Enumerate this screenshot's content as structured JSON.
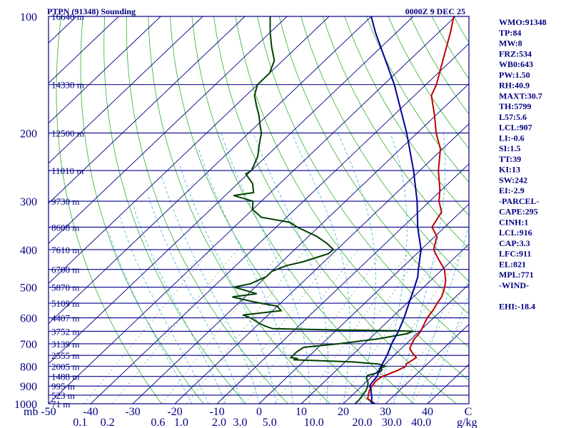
{
  "chart_data": {
    "type": "line",
    "title": "PTPN (91348) Sounding",
    "datetime": "0000Z  9 DEC 25",
    "xunit_label": "mb",
    "mixing_ratio_unit": "g/kg",
    "xlim": [
      -50,
      50
    ],
    "ylim": [
      1000,
      100
    ],
    "y_scale": "log",
    "pressure_ticks": [
      100,
      200,
      300,
      400,
      500,
      600,
      700,
      800,
      900,
      1000
    ],
    "temp_ticks": [
      -50,
      -40,
      -30,
      -20,
      -10,
      0,
      10,
      20,
      30,
      40
    ],
    "temp_tick_labels": [
      "-50",
      "-40",
      "-30",
      "-20",
      "-10",
      "0",
      "10",
      "20",
      "30",
      "40"
    ],
    "mixing_ratio_labels": [
      {
        "label": "0.1",
        "t": -42.5
      },
      {
        "label": "0.2",
        "t": -36
      },
      {
        "label": "0.6",
        "t": -24
      },
      {
        "label": "1.0",
        "t": -18.5
      },
      {
        "label": "2.0",
        "t": -9.5
      },
      {
        "label": "3.0",
        "t": -4.5
      },
      {
        "label": "5.0",
        "t": 2.5
      },
      {
        "label": "10.0",
        "t": 13
      },
      {
        "label": "20.0",
        "t": 24.5
      },
      {
        "label": "30.0",
        "t": 31.5
      },
      {
        "label": "40.0",
        "t": 38.5
      }
    ],
    "height_levels": [
      {
        "p": 100,
        "label": "16640 m"
      },
      {
        "p": 150,
        "label": "14330 m"
      },
      {
        "p": 200,
        "label": "12500 m"
      },
      {
        "p": 250,
        "label": "11010 m"
      },
      {
        "p": 300,
        "label": "9730 m"
      },
      {
        "p": 350,
        "label": "8608 m"
      },
      {
        "p": 400,
        "label": "7610 m"
      },
      {
        "p": 450,
        "label": "6700 m"
      },
      {
        "p": 500,
        "label": "5870 m"
      },
      {
        "p": 550,
        "label": "5109 m"
      },
      {
        "p": 600,
        "label": "4407 m"
      },
      {
        "p": 650,
        "label": "3752 m"
      },
      {
        "p": 700,
        "label": "3139 m"
      },
      {
        "p": 750,
        "label": "2555 m"
      },
      {
        "p": 800,
        "label": "2005 m"
      },
      {
        "p": 850,
        "label": "1488 m"
      },
      {
        "p": 900,
        "label": "995 m"
      },
      {
        "p": 950,
        "label": "523 m"
      },
      {
        "p": 1000,
        "label": "71 m"
      }
    ],
    "series": [
      {
        "name": "Temperature",
        "color": "#c00000",
        "points": [
          [
            1000,
            27.5
          ],
          [
            990,
            26.5
          ],
          [
            970,
            24.5
          ],
          [
            950,
            23.8
          ],
          [
            925,
            22.9
          ],
          [
            900,
            22.4
          ],
          [
            870,
            22.0
          ],
          [
            850,
            22.5
          ],
          [
            820,
            24.6
          ],
          [
            800,
            25.5
          ],
          [
            790,
            25.0
          ],
          [
            760,
            25.8
          ],
          [
            740,
            23.8
          ],
          [
            720,
            22.0
          ],
          [
            700,
            21.3
          ],
          [
            680,
            20.7
          ],
          [
            660,
            20.5
          ],
          [
            650,
            20.3
          ],
          [
            630,
            19.6
          ],
          [
            600,
            18.5
          ],
          [
            570,
            17.9
          ],
          [
            550,
            17.2
          ],
          [
            530,
            16.7
          ],
          [
            500,
            15.0
          ],
          [
            480,
            13.5
          ],
          [
            450,
            10.5
          ],
          [
            420,
            6.0
          ],
          [
            400,
            3.0
          ],
          [
            370,
            0.5
          ],
          [
            350,
            -3.0
          ],
          [
            320,
            -4.5
          ],
          [
            300,
            -7.8
          ],
          [
            280,
            -10.5
          ],
          [
            250,
            -15.6
          ],
          [
            220,
            -20.5
          ],
          [
            200,
            -25.5
          ],
          [
            180,
            -30.3
          ],
          [
            160,
            -36.0
          ],
          [
            150,
            -37.5
          ],
          [
            130,
            -42.0
          ],
          [
            110,
            -47.2
          ],
          [
            100,
            -50.4
          ]
        ]
      },
      {
        "name": "Dew Point",
        "color": "#004000",
        "points": [
          [
            1000,
            22.8
          ],
          [
            980,
            22.8
          ],
          [
            960,
            22.6
          ],
          [
            950,
            22.4
          ],
          [
            925,
            22.1
          ],
          [
            900,
            21.4
          ],
          [
            880,
            20.5
          ],
          [
            860,
            19.2
          ],
          [
            845,
            18.7
          ],
          [
            835,
            20.0
          ],
          [
            825,
            20.8
          ],
          [
            815,
            20.6
          ],
          [
            810,
            19.8
          ],
          [
            800,
            20.6
          ],
          [
            790,
            18.5
          ],
          [
            780,
            12.0
          ],
          [
            770,
            -2.8
          ],
          [
            765,
            -2.0
          ],
          [
            760,
            -4.0
          ],
          [
            745,
            -4.0
          ],
          [
            735,
            -4.0
          ],
          [
            715,
            -3.5
          ],
          [
            700,
            4.0
          ],
          [
            680,
            12.0
          ],
          [
            660,
            17.5
          ],
          [
            650,
            18.5
          ],
          [
            648,
            15.0
          ],
          [
            645,
            0.5
          ],
          [
            640,
            -15.5
          ],
          [
            630,
            -18.0
          ],
          [
            620,
            -20.0
          ],
          [
            600,
            -23.5
          ],
          [
            590,
            -26.0
          ],
          [
            575,
            -18.0
          ],
          [
            560,
            -20.0
          ],
          [
            545,
            -27.0
          ],
          [
            530,
            -33.0
          ],
          [
            520,
            -28.0
          ],
          [
            500,
            -35.0
          ],
          [
            490,
            -32.0
          ],
          [
            470,
            -30.0
          ],
          [
            455,
            -30.0
          ],
          [
            440,
            -28.0
          ],
          [
            430,
            -25.0
          ],
          [
            410,
            -21.0
          ],
          [
            400,
            -20.8
          ],
          [
            385,
            -24.0
          ],
          [
            370,
            -28.0
          ],
          [
            350,
            -35.0
          ],
          [
            340,
            -38.0
          ],
          [
            330,
            -46.0
          ],
          [
            315,
            -50.0
          ],
          [
            300,
            -52.0
          ],
          [
            290,
            -58.0
          ],
          [
            285,
            -54.0
          ],
          [
            270,
            -56.5
          ],
          [
            255,
            -60.5
          ],
          [
            250,
            -60.0
          ],
          [
            230,
            -62.0
          ],
          [
            215,
            -64.5
          ],
          [
            200,
            -67.0
          ],
          [
            190,
            -69.5
          ],
          [
            180,
            -72.0
          ],
          [
            170,
            -75.0
          ],
          [
            160,
            -78.0
          ],
          [
            150,
            -80.0
          ],
          [
            140,
            -80.0
          ],
          [
            130,
            -82.0
          ],
          [
            120,
            -86.0
          ],
          [
            110,
            -90.0
          ],
          [
            100,
            -94.0
          ]
        ]
      },
      {
        "name": "Parcel",
        "color": "#000098",
        "points": [
          [
            1000,
            27.5
          ],
          [
            990,
            26.2
          ],
          [
            970,
            25.5
          ],
          [
            950,
            24.5
          ],
          [
            920,
            23.1
          ],
          [
            900,
            21.8
          ],
          [
            880,
            21.5
          ],
          [
            850,
            21.2
          ],
          [
            800,
            19.6
          ],
          [
            750,
            18.3
          ],
          [
            700,
            16.5
          ],
          [
            650,
            15.0
          ],
          [
            600,
            13.0
          ],
          [
            550,
            10.5
          ],
          [
            500,
            7.8
          ],
          [
            470,
            6.0
          ],
          [
            450,
            4.3
          ],
          [
            400,
            0.0
          ],
          [
            350,
            -6.4
          ],
          [
            300,
            -13.0
          ],
          [
            250,
            -21.5
          ],
          [
            200,
            -32.5
          ],
          [
            150,
            -47.5
          ],
          [
            110,
            -65.0
          ],
          [
            100,
            -70.0
          ]
        ]
      }
    ]
  },
  "indices": [
    "WMO:91348",
    "TP:84",
    "MW:8",
    "FRZ:534",
    "WB0:643",
    "PW:1.50",
    "RH:40.9",
    "MAXT:30.7",
    "TH:5799",
    "L57:5.6",
    "LCL:907",
    "LI:-0.6",
    "SI:1.5",
    "TT:39",
    "KI:13",
    "SW:242",
    "EI:-2.9",
    "-PARCEL-",
    "CAPE:295",
    "CINH:1",
    "LCL:916",
    "CAP:3.3",
    "LFC:911",
    "EL:821",
    "MPL:771",
    "-WIND-",
    "",
    "EHI:-18.4"
  ],
  "colors": {
    "axis": "#000080",
    "isobar": "#00008b",
    "isotherm": "#000080",
    "dry_adiabat": "#30b030",
    "moist_adiabat": "#40b0e0",
    "mixing_ratio": "#80a080"
  }
}
